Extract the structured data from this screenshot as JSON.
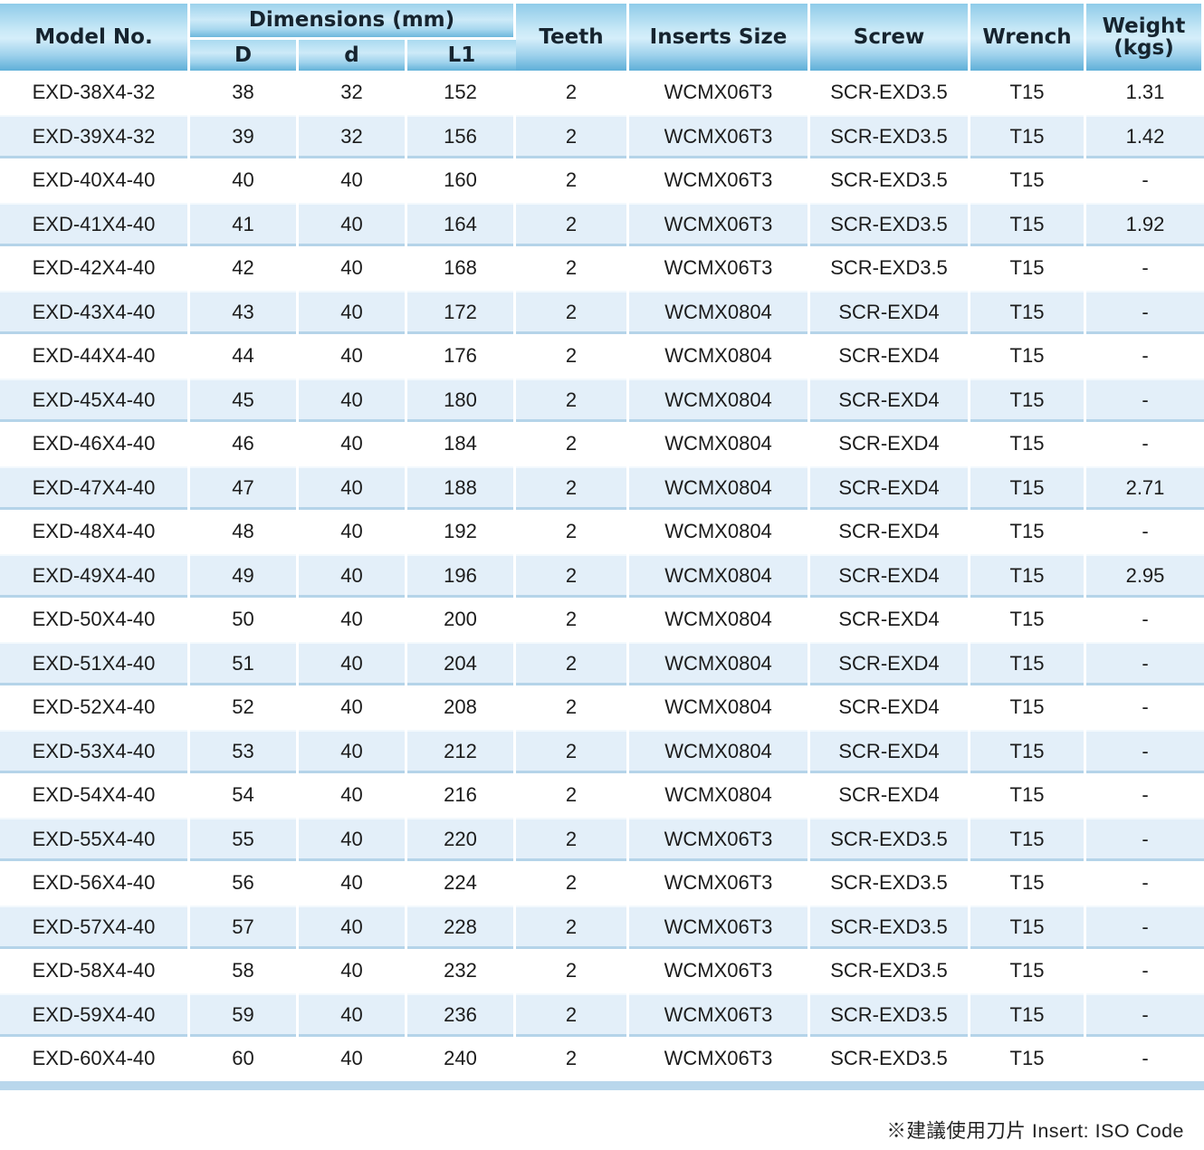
{
  "table": {
    "header": {
      "model_no": "Model No.",
      "dimensions_group": "Dimensions (mm)",
      "dim_D": "D",
      "dim_d": "d",
      "dim_L1": "L1",
      "teeth": "Teeth",
      "inserts_size": "Inserts Size",
      "screw": "Screw",
      "wrench": "Wrench",
      "weight": "Weight\n(kgs)"
    },
    "column_keys": [
      "model",
      "D",
      "d",
      "L1",
      "teeth",
      "inserts-size",
      "screw",
      "wrench",
      "weight"
    ],
    "rows": [
      [
        "EXD-38X4-32",
        "38",
        "32",
        "152",
        "2",
        "WCMX06T3",
        "SCR-EXD3.5",
        "T15",
        "1.31"
      ],
      [
        "EXD-39X4-32",
        "39",
        "32",
        "156",
        "2",
        "WCMX06T3",
        "SCR-EXD3.5",
        "T15",
        "1.42"
      ],
      [
        "EXD-40X4-40",
        "40",
        "40",
        "160",
        "2",
        "WCMX06T3",
        "SCR-EXD3.5",
        "T15",
        "-"
      ],
      [
        "EXD-41X4-40",
        "41",
        "40",
        "164",
        "2",
        "WCMX06T3",
        "SCR-EXD3.5",
        "T15",
        "1.92"
      ],
      [
        "EXD-42X4-40",
        "42",
        "40",
        "168",
        "2",
        "WCMX06T3",
        "SCR-EXD3.5",
        "T15",
        "-"
      ],
      [
        "EXD-43X4-40",
        "43",
        "40",
        "172",
        "2",
        "WCMX0804",
        "SCR-EXD4",
        "T15",
        "-"
      ],
      [
        "EXD-44X4-40",
        "44",
        "40",
        "176",
        "2",
        "WCMX0804",
        "SCR-EXD4",
        "T15",
        "-"
      ],
      [
        "EXD-45X4-40",
        "45",
        "40",
        "180",
        "2",
        "WCMX0804",
        "SCR-EXD4",
        "T15",
        "-"
      ],
      [
        "EXD-46X4-40",
        "46",
        "40",
        "184",
        "2",
        "WCMX0804",
        "SCR-EXD4",
        "T15",
        "-"
      ],
      [
        "EXD-47X4-40",
        "47",
        "40",
        "188",
        "2",
        "WCMX0804",
        "SCR-EXD4",
        "T15",
        "2.71"
      ],
      [
        "EXD-48X4-40",
        "48",
        "40",
        "192",
        "2",
        "WCMX0804",
        "SCR-EXD4",
        "T15",
        "-"
      ],
      [
        "EXD-49X4-40",
        "49",
        "40",
        "196",
        "2",
        "WCMX0804",
        "SCR-EXD4",
        "T15",
        "2.95"
      ],
      [
        "EXD-50X4-40",
        "50",
        "40",
        "200",
        "2",
        "WCMX0804",
        "SCR-EXD4",
        "T15",
        "-"
      ],
      [
        "EXD-51X4-40",
        "51",
        "40",
        "204",
        "2",
        "WCMX0804",
        "SCR-EXD4",
        "T15",
        "-"
      ],
      [
        "EXD-52X4-40",
        "52",
        "40",
        "208",
        "2",
        "WCMX0804",
        "SCR-EXD4",
        "T15",
        "-"
      ],
      [
        "EXD-53X4-40",
        "53",
        "40",
        "212",
        "2",
        "WCMX0804",
        "SCR-EXD4",
        "T15",
        "-"
      ],
      [
        "EXD-54X4-40",
        "54",
        "40",
        "216",
        "2",
        "WCMX0804",
        "SCR-EXD4",
        "T15",
        "-"
      ],
      [
        "EXD-55X4-40",
        "55",
        "40",
        "220",
        "2",
        "WCMX06T3",
        "SCR-EXD3.5",
        "T15",
        "-"
      ],
      [
        "EXD-56X4-40",
        "56",
        "40",
        "224",
        "2",
        "WCMX06T3",
        "SCR-EXD3.5",
        "T15",
        "-"
      ],
      [
        "EXD-57X4-40",
        "57",
        "40",
        "228",
        "2",
        "WCMX06T3",
        "SCR-EXD3.5",
        "T15",
        "-"
      ],
      [
        "EXD-58X4-40",
        "58",
        "40",
        "232",
        "2",
        "WCMX06T3",
        "SCR-EXD3.5",
        "T15",
        "-"
      ],
      [
        "EXD-59X4-40",
        "59",
        "40",
        "236",
        "2",
        "WCMX06T3",
        "SCR-EXD3.5",
        "T15",
        "-"
      ],
      [
        "EXD-60X4-40",
        "60",
        "40",
        "240",
        "2",
        "WCMX06T3",
        "SCR-EXD3.5",
        "T15",
        "-"
      ]
    ]
  },
  "footer": {
    "note": "※建議使用刀片 Insert: ISO Code"
  },
  "colors": {
    "header_blue_light": "#d5eefa",
    "header_blue_dark": "#5fafd8",
    "row_alt_blue": "#e3eff9",
    "row_border_blue": "#b5d4e9",
    "bottom_bar_blue": "#b9d7ec",
    "header_text": "#16242f"
  }
}
